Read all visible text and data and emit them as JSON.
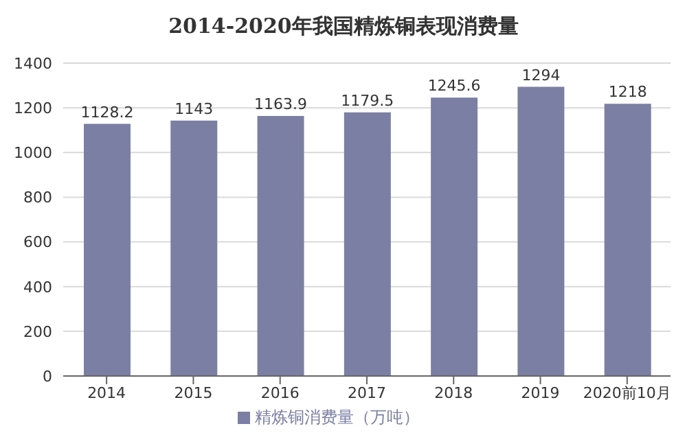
{
  "chart_data": {
    "type": "bar",
    "title": "2014-2020年我国精炼铜表现消费量",
    "categories": [
      "2014",
      "2015",
      "2016",
      "2017",
      "2018",
      "2019",
      "2020前10月"
    ],
    "series": [
      {
        "name": "精炼铜消费量（万吨）",
        "color": "#7b7fa3",
        "values": [
          1128.2,
          1143,
          1163.9,
          1179.5,
          1245.6,
          1294,
          1218
        ]
      }
    ],
    "ylim": [
      0,
      1400
    ],
    "yticks": [
      0,
      200,
      400,
      600,
      800,
      1000,
      1200,
      1400
    ],
    "grid": "y",
    "legend": "bottom",
    "data_labels": true
  }
}
